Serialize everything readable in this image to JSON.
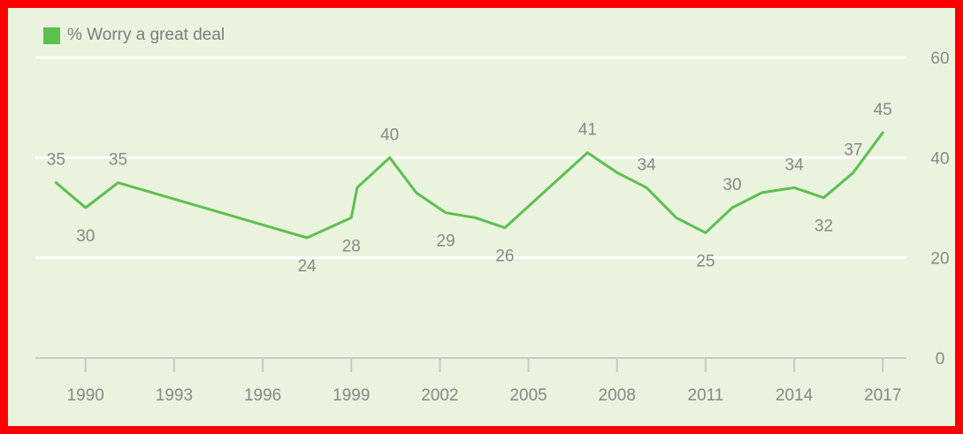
{
  "chart_data": {
    "type": "line",
    "legend": {
      "label": "% Worry a great deal",
      "placement": "top-left"
    },
    "x": [
      1989.0,
      1990.0,
      1991.1,
      1997.5,
      1999.0,
      1999.2,
      2000.3,
      2001.2,
      2002.2,
      2003.2,
      2004.2,
      2007.0,
      2008.0,
      2009.0,
      2010.0,
      2011.0,
      2011.9,
      2012.9,
      2014.0,
      2015.0,
      2016.0,
      2017.0
    ],
    "series": [
      {
        "name": "% Worry a great deal",
        "values": [
          35,
          30,
          35,
          24,
          28,
          34,
          40,
          33,
          29,
          28,
          26,
          41,
          37,
          34,
          28,
          25,
          30,
          33,
          34,
          32,
          37,
          45
        ],
        "color": "#5cc04f"
      }
    ],
    "labels": [
      {
        "index": 0,
        "text": "35",
        "pos": "above"
      },
      {
        "index": 1,
        "text": "30",
        "pos": "below"
      },
      {
        "index": 2,
        "text": "35",
        "pos": "above"
      },
      {
        "index": 3,
        "text": "24",
        "pos": "below"
      },
      {
        "index": 4,
        "text": "28",
        "pos": "below"
      },
      {
        "index": 6,
        "text": "40",
        "pos": "above"
      },
      {
        "index": 8,
        "text": "29",
        "pos": "below"
      },
      {
        "index": 10,
        "text": "26",
        "pos": "below"
      },
      {
        "index": 11,
        "text": "41",
        "pos": "above"
      },
      {
        "index": 13,
        "text": "34",
        "pos": "above"
      },
      {
        "index": 15,
        "text": "25",
        "pos": "below"
      },
      {
        "index": 16,
        "text": "30",
        "pos": "above"
      },
      {
        "index": 18,
        "text": "34",
        "pos": "above"
      },
      {
        "index": 19,
        "text": "32",
        "pos": "below"
      },
      {
        "index": 20,
        "text": "37",
        "pos": "above"
      },
      {
        "index": 21,
        "text": "45",
        "pos": "above"
      }
    ],
    "x_ticks": [
      "1990",
      "1993",
      "1996",
      "1999",
      "2002",
      "2005",
      "2008",
      "2011",
      "2014",
      "2017"
    ],
    "x_tick_values": [
      1990,
      1993,
      1996,
      1999,
      2002,
      2005,
      2008,
      2011,
      2014,
      2017
    ],
    "y_ticks": [
      "0",
      "20",
      "40",
      "60"
    ],
    "y_tick_values": [
      0,
      20,
      40,
      60
    ],
    "xlim": [
      1988.3,
      2017.8
    ],
    "ylim": [
      0,
      60
    ],
    "y_axis_side": "right",
    "grid": true,
    "colors": {
      "line": "#5cc04f",
      "background": "#eaf3de",
      "grid": "#ffffff",
      "frame": "#ff0000",
      "text": "#888888"
    }
  }
}
